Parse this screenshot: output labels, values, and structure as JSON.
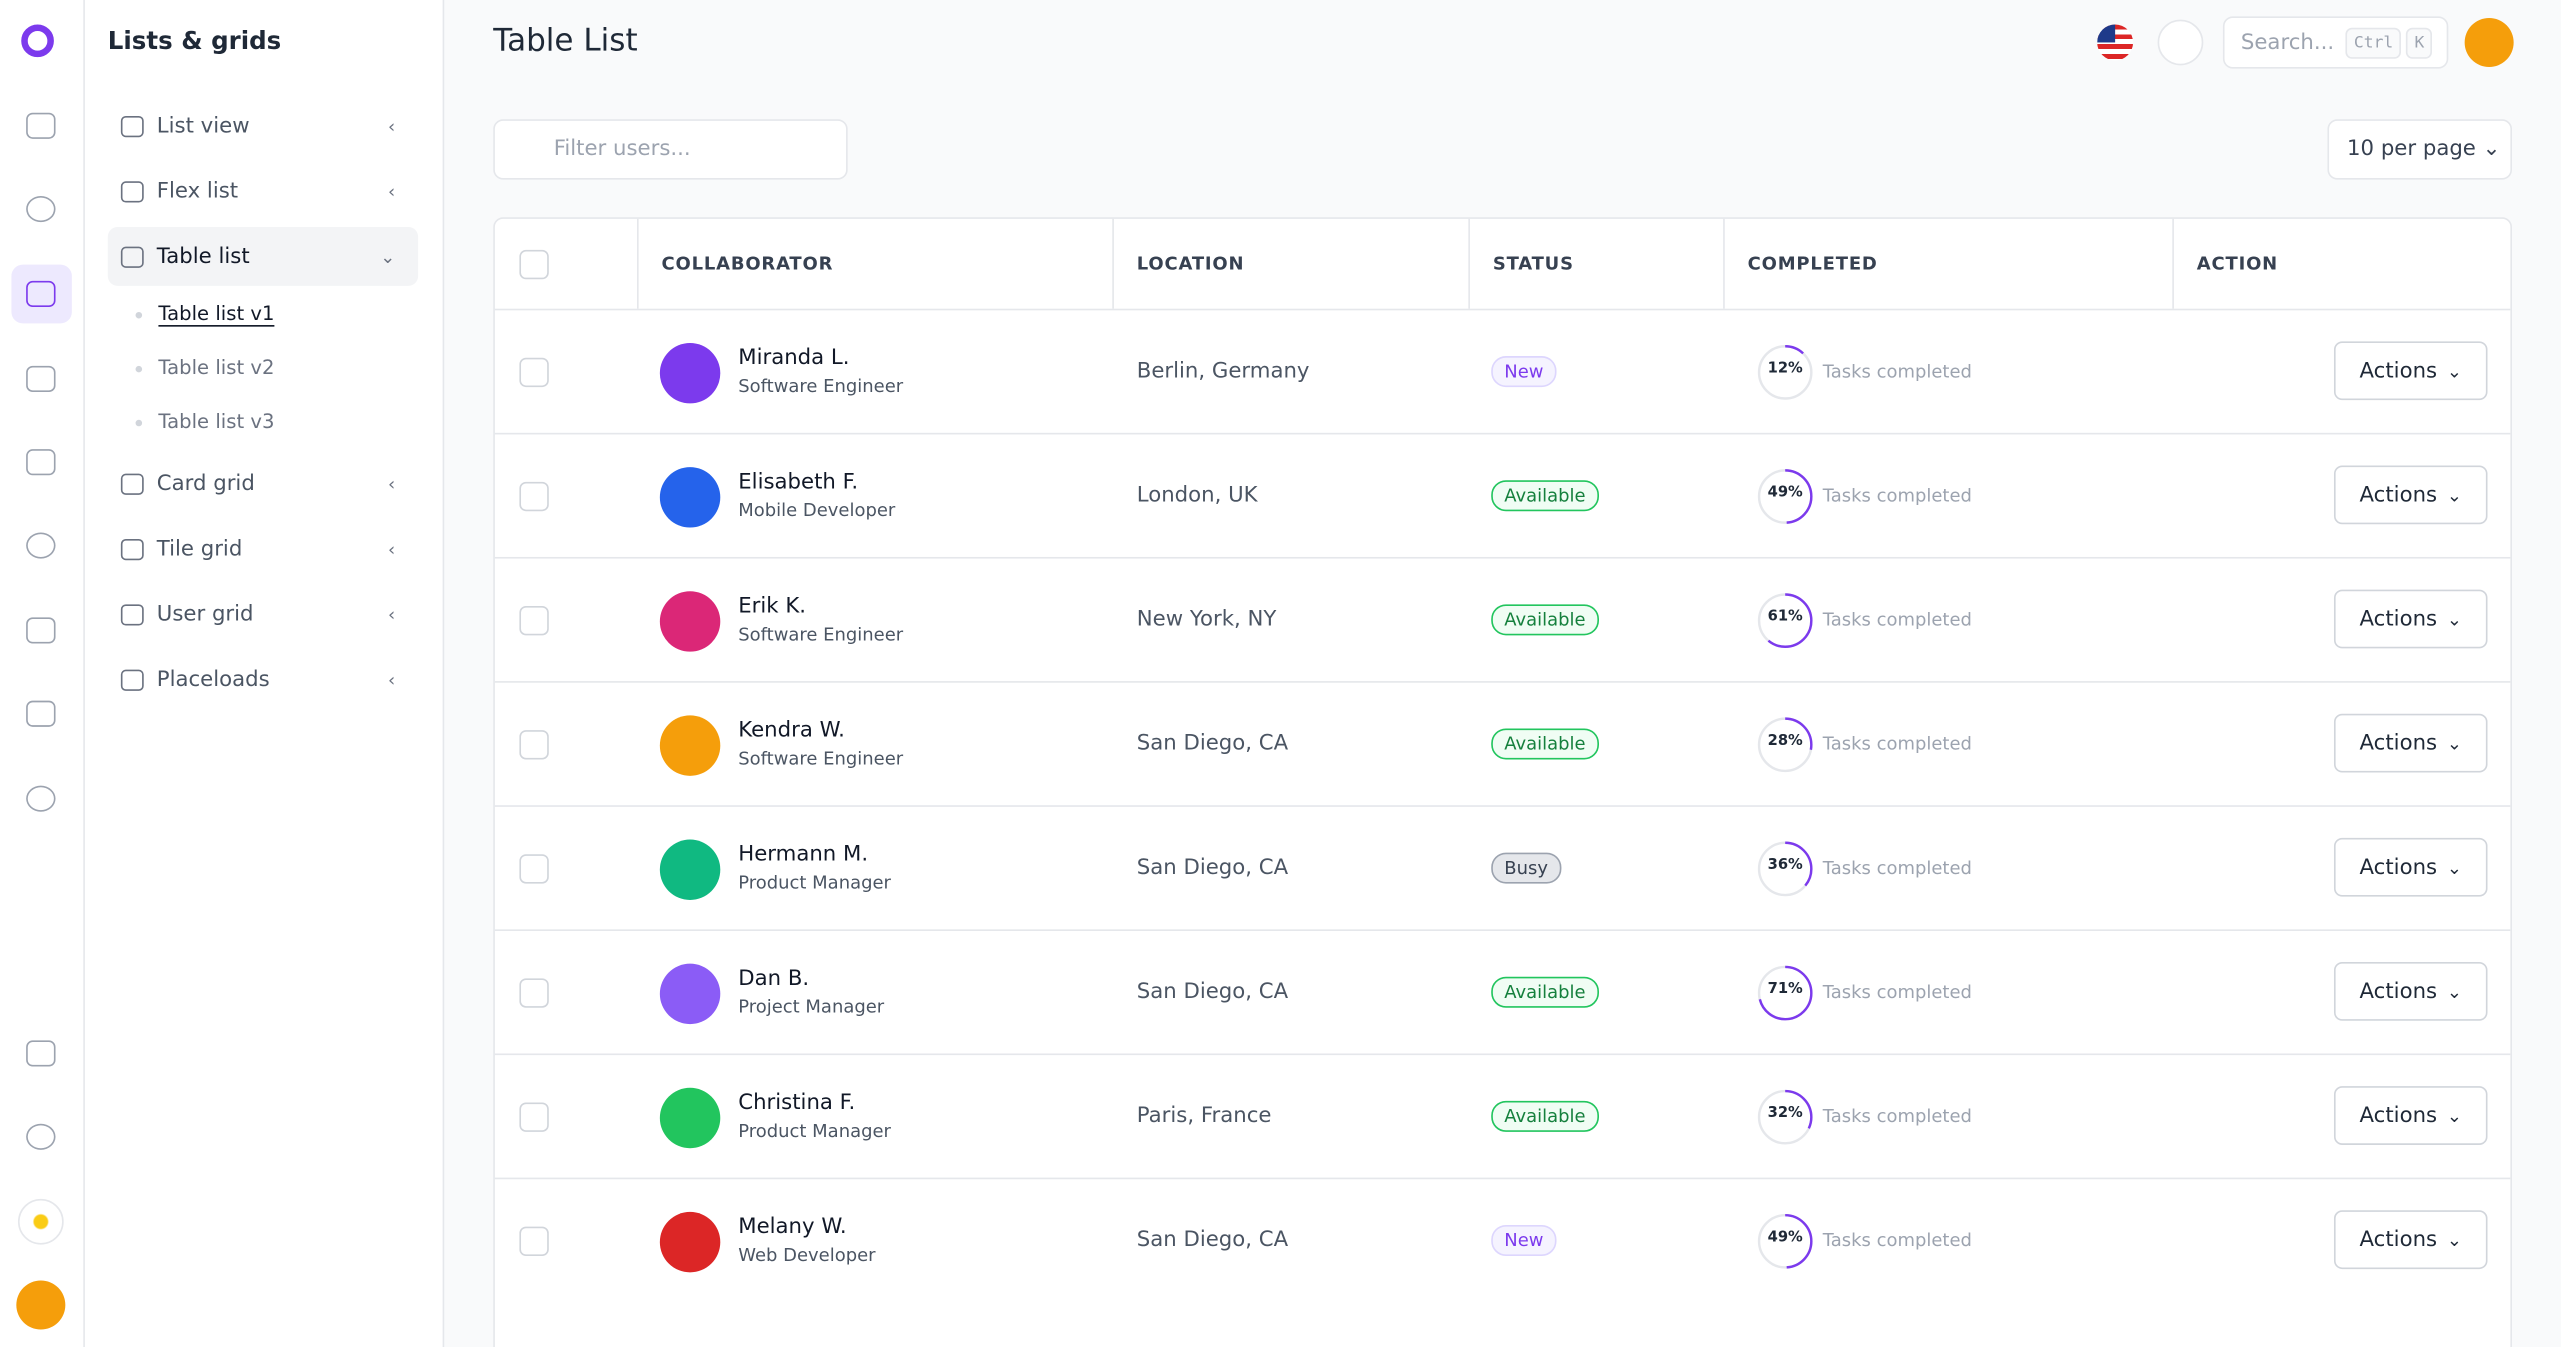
{
  "sidebar": {
    "title": "Lists & grids",
    "items": [
      {
        "label": "List view"
      },
      {
        "label": "Flex list"
      },
      {
        "label": "Table list",
        "children": [
          "Table list v1",
          "Table list v2",
          "Table list v3"
        ]
      },
      {
        "label": "Card grid"
      },
      {
        "label": "Tile grid"
      },
      {
        "label": "User grid"
      },
      {
        "label": "Placeloads"
      }
    ]
  },
  "header": {
    "title": "Table List",
    "search": "Search...",
    "keys": [
      "Ctrl",
      "K"
    ]
  },
  "toolbar": {
    "filter_placeholder": "Filter users...",
    "per_page": "10 per page"
  },
  "table": {
    "columns": [
      "COLLABORATOR",
      "LOCATION",
      "STATUS",
      "COMPLETED",
      "ACTION"
    ],
    "rows": [
      {
        "name": "Miranda L.",
        "role": "Software Engineer",
        "location": "Berlin, Germany",
        "status": "New",
        "completed": "12%",
        "note": "Tasks completed",
        "action": "Actions"
      },
      {
        "name": "Elisabeth F.",
        "role": "Mobile Developer",
        "location": "London, UK",
        "status": "Available",
        "completed": "49%",
        "note": "Tasks completed",
        "action": "Actions"
      },
      {
        "name": "Erik K.",
        "role": "Software Engineer",
        "location": "New York, NY",
        "status": "Available",
        "completed": "61%",
        "note": "Tasks completed",
        "action": "Actions"
      },
      {
        "name": "Kendra W.",
        "role": "Software Engineer",
        "location": "San Diego, CA",
        "status": "Available",
        "completed": "28%",
        "note": "Tasks completed",
        "action": "Actions"
      },
      {
        "name": "Hermann M.",
        "role": "Product Manager",
        "location": "San Diego, CA",
        "status": "Busy",
        "completed": "36%",
        "note": "Tasks completed",
        "action": "Actions"
      },
      {
        "name": "Dan B.",
        "role": "Project Manager",
        "location": "San Diego, CA",
        "status": "Available",
        "completed": "71%",
        "note": "Tasks completed",
        "action": "Actions"
      },
      {
        "name": "Christina F.",
        "role": "Product Manager",
        "location": "Paris, France",
        "status": "Available",
        "completed": "32%",
        "note": "Tasks completed",
        "action": "Actions"
      },
      {
        "name": "Melany W.",
        "role": "Web Developer",
        "location": "San Diego, CA",
        "status": "New",
        "completed": "49%",
        "note": "Tasks completed",
        "action": "Actions"
      }
    ]
  }
}
